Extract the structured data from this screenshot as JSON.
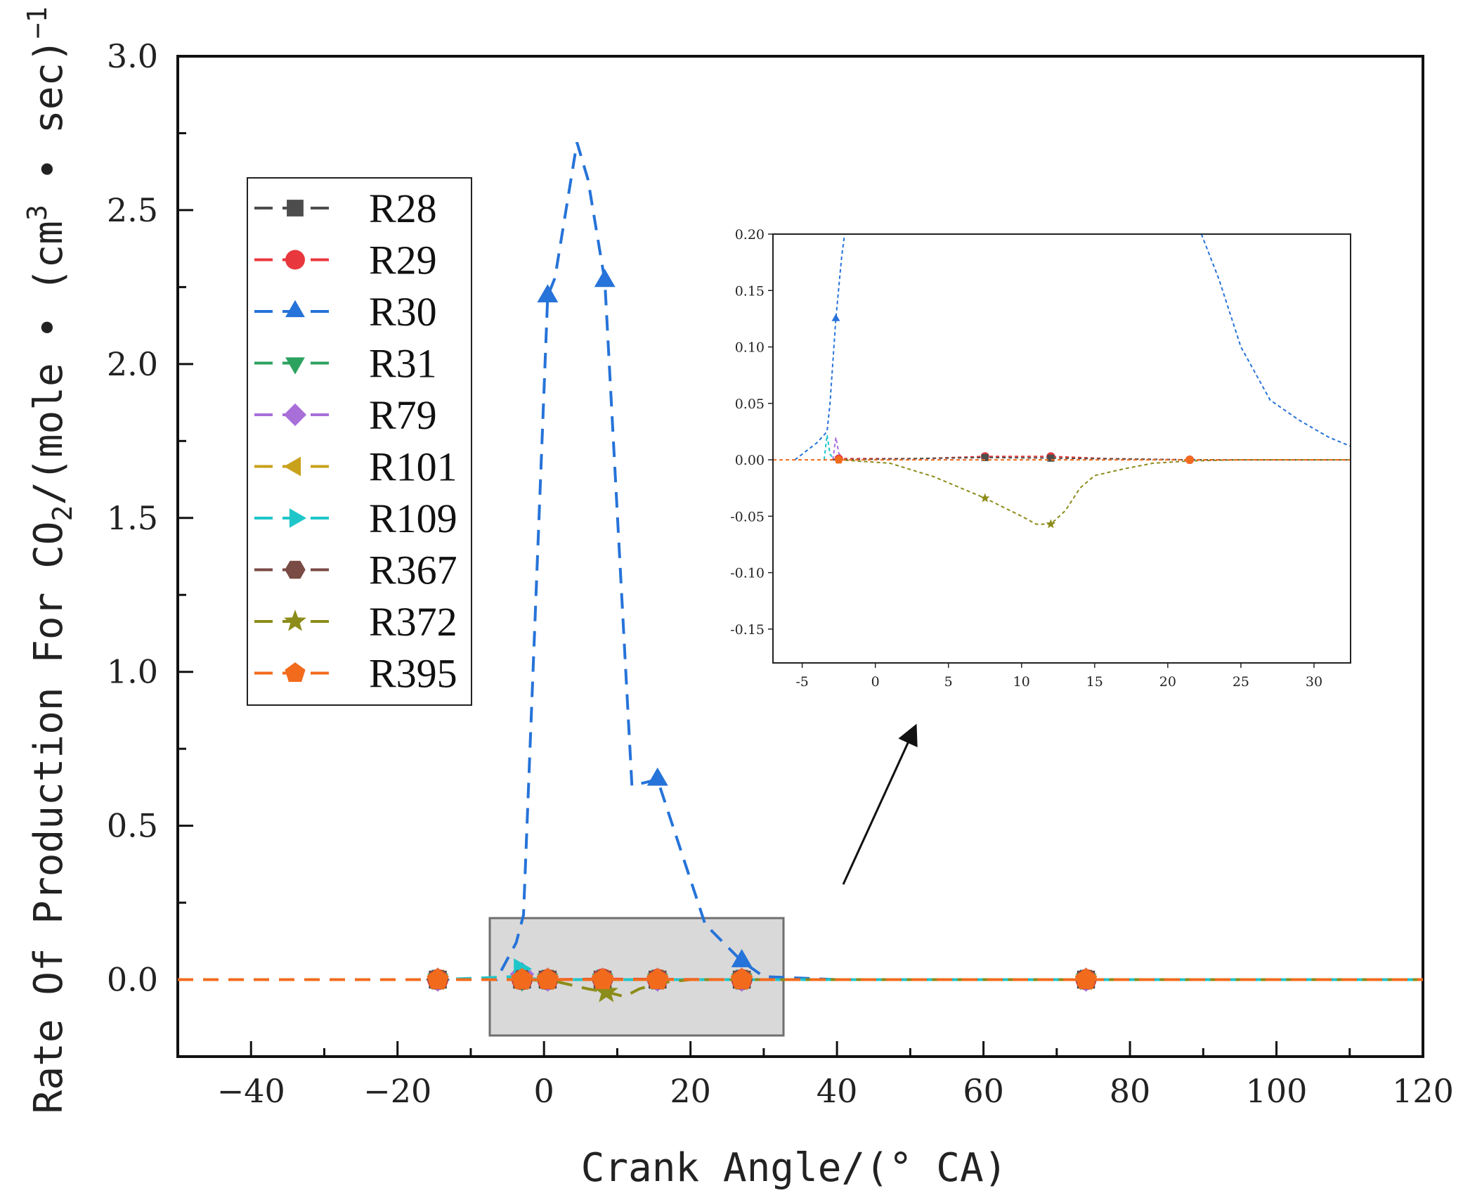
{
  "chart_data": [
    {
      "type": "line",
      "panel": "main",
      "title": "",
      "xlabel": "Crank Angle/(° CA)",
      "ylabel": "Rate Of Production For CO2/(mole • (cm3 • sec)-1)",
      "ylabel_parts": {
        "pre": "Rate Of Production For CO",
        "sub": "2",
        "mid1": "/(mole • (cm",
        "sup1": "3",
        "mid2": " • sec)",
        "sup2": "−1",
        "post": ")"
      },
      "xlim": [
        -50,
        120
      ],
      "ylim": [
        -0.25,
        3.0
      ],
      "xticks": [
        -40,
        -20,
        0,
        20,
        40,
        60,
        80,
        100,
        120
      ],
      "xtick_labels": [
        "−40",
        "−20",
        "0",
        "20",
        "40",
        "60",
        "80",
        "100",
        "120"
      ],
      "yticks": [
        0.0,
        0.5,
        1.0,
        1.5,
        2.0,
        2.5,
        3.0
      ],
      "ytick_labels": [
        "0.0",
        "0.5",
        "1.0",
        "1.5",
        "2.0",
        "2.5",
        "3.0"
      ],
      "grid": false,
      "legend_position": "upper-left",
      "series": [
        {
          "name": "R28",
          "color": "#4d4d4d",
          "marker": "square",
          "points": [
            [
              -50,
              0
            ],
            [
              -14.5,
              0
            ],
            [
              -3,
              0
            ],
            [
              0.5,
              0
            ],
            [
              8,
              0
            ],
            [
              15.5,
              0
            ],
            [
              27,
              0
            ],
            [
              74,
              0
            ],
            [
              120,
              0
            ]
          ],
          "marker_x": [
            -14.5,
            -3,
            0.5,
            8,
            15.5,
            27,
            74
          ]
        },
        {
          "name": "R29",
          "color": "#e8383d",
          "marker": "circle",
          "points": [
            [
              -50,
              0
            ],
            [
              -14.5,
              0
            ],
            [
              -3,
              0
            ],
            [
              0.5,
              0
            ],
            [
              8,
              0.002
            ],
            [
              15.5,
              0.001
            ],
            [
              27,
              0
            ],
            [
              74,
              0
            ],
            [
              120,
              0
            ]
          ],
          "marker_x": [
            -14.5,
            -3,
            0.5,
            8,
            15.5,
            27,
            74
          ]
        },
        {
          "name": "R30",
          "color": "#2673d9",
          "marker": "triangle-up",
          "points": [
            [
              -50,
              0
            ],
            [
              -6.5,
              0
            ],
            [
              -3.8,
              0.12
            ],
            [
              -2.8,
              0.21
            ],
            [
              0.5,
              2.22
            ],
            [
              1.5,
              2.28
            ],
            [
              4.5,
              2.72
            ],
            [
              6,
              2.6
            ],
            [
              8.3,
              2.27
            ],
            [
              12,
              0.63
            ],
            [
              15.5,
              0.65
            ],
            [
              22,
              0.18
            ],
            [
              27,
              0.06
            ],
            [
              30,
              0.01
            ],
            [
              40,
              0
            ],
            [
              120,
              0
            ]
          ],
          "marker_x": [
            0.5,
            8.3,
            15.5,
            27
          ]
        },
        {
          "name": "R31",
          "color": "#2ca25f",
          "marker": "triangle-down",
          "points": [
            [
              -50,
              0
            ],
            [
              -14.5,
              0
            ],
            [
              -3,
              0
            ],
            [
              0.5,
              0
            ],
            [
              8,
              0
            ],
            [
              15.5,
              0
            ],
            [
              27,
              0
            ],
            [
              74,
              0
            ],
            [
              120,
              0
            ]
          ],
          "marker_x": [
            -14.5,
            -3,
            0.5,
            8,
            15.5,
            27,
            74
          ]
        },
        {
          "name": "R79",
          "color": "#a86fd9",
          "marker": "diamond",
          "points": [
            [
              -50,
              0
            ],
            [
              -14.5,
              0
            ],
            [
              -3.8,
              0
            ],
            [
              -3,
              0.018
            ],
            [
              -2.5,
              0
            ],
            [
              0.5,
              0
            ],
            [
              8,
              0
            ],
            [
              15.5,
              0
            ],
            [
              27,
              0
            ],
            [
              74,
              0
            ],
            [
              120,
              0
            ]
          ],
          "marker_x": [
            -14.5,
            -3,
            0.5,
            8,
            15.5,
            27,
            74
          ]
        },
        {
          "name": "R101",
          "color": "#c9a21b",
          "marker": "triangle-left",
          "points": [
            [
              -50,
              0
            ],
            [
              -14.5,
              0
            ],
            [
              -3,
              0
            ],
            [
              0.5,
              0
            ],
            [
              8,
              0
            ],
            [
              15.5,
              0
            ],
            [
              27,
              0
            ],
            [
              74,
              0
            ],
            [
              120,
              0
            ]
          ],
          "marker_x": [
            -14.5,
            -3,
            0.5,
            8,
            15.5,
            27,
            74
          ]
        },
        {
          "name": "R109",
          "color": "#1fc6c9",
          "marker": "triangle-right",
          "points": [
            [
              -50,
              0
            ],
            [
              -14.5,
              0
            ],
            [
              -4,
              0.01
            ],
            [
              -3.3,
              0.035
            ],
            [
              -2.5,
              0.004
            ],
            [
              0.5,
              0
            ],
            [
              8,
              0
            ],
            [
              15.5,
              0
            ],
            [
              27,
              0
            ],
            [
              74,
              0
            ],
            [
              120,
              0
            ]
          ],
          "marker_x": [
            -14.5,
            -3.3,
            0.5,
            8,
            15.5,
            27,
            74
          ]
        },
        {
          "name": "R367",
          "color": "#7a4a45",
          "marker": "hexagon",
          "points": [
            [
              -50,
              0
            ],
            [
              -14.5,
              0
            ],
            [
              -3,
              0
            ],
            [
              0.5,
              0
            ],
            [
              8,
              0
            ],
            [
              15.5,
              0
            ],
            [
              27,
              0
            ],
            [
              74,
              0
            ],
            [
              120,
              0
            ]
          ],
          "marker_x": [
            -14.5,
            -3,
            0.5,
            8,
            15.5,
            27,
            74
          ]
        },
        {
          "name": "R372",
          "color": "#8c8c1a",
          "marker": "star",
          "points": [
            [
              -50,
              0
            ],
            [
              -5,
              0
            ],
            [
              -2,
              0
            ],
            [
              2,
              -0.008
            ],
            [
              6,
              -0.03
            ],
            [
              8.5,
              -0.04
            ],
            [
              11,
              -0.055
            ],
            [
              13,
              -0.03
            ],
            [
              16,
              -0.01
            ],
            [
              20,
              0
            ],
            [
              120,
              0
            ]
          ],
          "marker_x": [
            8.5
          ]
        },
        {
          "name": "R395",
          "color": "#f26b1d",
          "marker": "pentagon",
          "points": [
            [
              -50,
              0
            ],
            [
              -14.5,
              0
            ],
            [
              -3,
              0
            ],
            [
              0.5,
              0
            ],
            [
              8,
              0
            ],
            [
              15.5,
              0
            ],
            [
              27,
              0
            ],
            [
              74,
              0
            ],
            [
              120,
              0
            ]
          ],
          "marker_x": [
            -14.5,
            -3,
            0.5,
            8,
            15.5,
            27,
            74
          ]
        }
      ]
    },
    {
      "type": "line",
      "panel": "inset",
      "title": "",
      "xlim": [
        -7,
        32.5
      ],
      "ylim": [
        -0.18,
        0.2
      ],
      "xticks": [
        -5,
        0,
        5,
        10,
        15,
        20,
        25,
        30
      ],
      "xtick_labels": [
        "-5",
        "0",
        "5",
        "10",
        "15",
        "20",
        "25",
        "30"
      ],
      "yticks": [
        -0.15,
        -0.1,
        -0.05,
        0.0,
        0.05,
        0.1,
        0.15,
        0.2
      ],
      "ytick_labels": [
        "-0.15",
        "-0.10",
        "-0.05",
        "0.00",
        "0.05",
        "0.10",
        "0.15",
        "0.20"
      ],
      "series": [
        {
          "name": "R30",
          "color": "#2673d9",
          "points": [
            [
              -5.5,
              0
            ],
            [
              -4,
              0.015
            ],
            [
              -3.3,
              0.025
            ],
            [
              -3.1,
              0.05
            ],
            [
              -2.7,
              0.125
            ],
            [
              -2.3,
              0.18
            ],
            [
              -2.1,
              0.2
            ]
          ],
          "points2": [
            [
              22.3,
              0.2
            ],
            [
              23.5,
              0.16
            ],
            [
              25,
              0.1
            ],
            [
              27,
              0.053
            ],
            [
              29,
              0.035
            ],
            [
              31,
              0.02
            ],
            [
              32.5,
              0.012
            ]
          ],
          "marker_x": [
            -2.7
          ]
        },
        {
          "name": "R109",
          "color": "#1fc6c9",
          "points": [
            [
              -3.5,
              0
            ],
            [
              -3.3,
              0.022
            ],
            [
              -3.1,
              0.005
            ],
            [
              -2.8,
              0
            ]
          ]
        },
        {
          "name": "R79",
          "color": "#a86fd9",
          "points": [
            [
              -2.9,
              0
            ],
            [
              -2.7,
              0.02
            ],
            [
              -2.5,
              0.006
            ],
            [
              -2.2,
              0
            ]
          ]
        },
        {
          "name": "R29",
          "color": "#e8383d",
          "points": [
            [
              -3,
              0
            ],
            [
              -2.5,
              0.001
            ],
            [
              3,
              0.001
            ],
            [
              7.5,
              0.003
            ],
            [
              12,
              0.003
            ],
            [
              16,
              0.001
            ],
            [
              21.5,
              0
            ],
            [
              32.5,
              0
            ]
          ],
          "marker_x": [
            -2.5,
            7.5,
            12,
            21.5
          ]
        },
        {
          "name": "R28",
          "color": "#4d4d4d",
          "points": [
            [
              -3,
              0
            ],
            [
              7.5,
              0.002
            ],
            [
              12,
              0.0015
            ],
            [
              21.5,
              0
            ],
            [
              32.5,
              0
            ]
          ],
          "marker_x": [
            7.5,
            12
          ]
        },
        {
          "name": "R372",
          "color": "#8c8c1a",
          "points": [
            [
              -2.5,
              0
            ],
            [
              1,
              -0.003
            ],
            [
              4,
              -0.015
            ],
            [
              7.5,
              -0.034
            ],
            [
              10,
              -0.05
            ],
            [
              11,
              -0.057
            ],
            [
              12,
              -0.057
            ],
            [
              13,
              -0.045
            ],
            [
              14,
              -0.025
            ],
            [
              15,
              -0.014
            ],
            [
              17,
              -0.008
            ],
            [
              19,
              -0.003
            ],
            [
              21.5,
              -0.001
            ],
            [
              25,
              0
            ],
            [
              32.5,
              0
            ]
          ],
          "marker_x": [
            7.5,
            12
          ]
        },
        {
          "name": "R395",
          "color": "#f26b1d",
          "points": [
            [
              -7,
              0
            ],
            [
              -2.5,
              0
            ],
            [
              21.5,
              0
            ],
            [
              32.5,
              0
            ]
          ],
          "marker_x": [
            -2.5,
            21.5
          ]
        }
      ]
    }
  ]
}
